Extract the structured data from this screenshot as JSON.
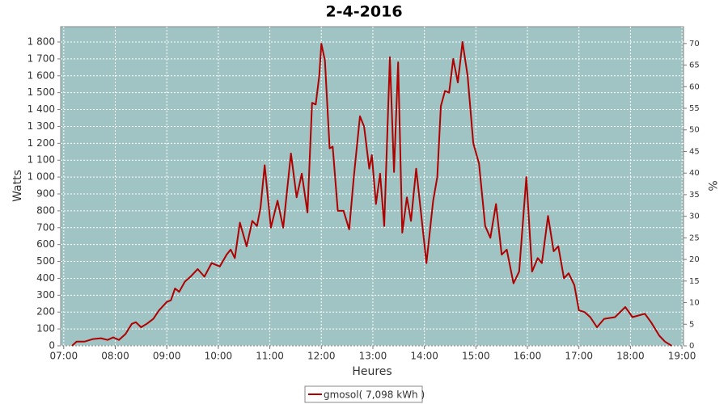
{
  "chart_data": {
    "type": "line",
    "title": "2-4-2016",
    "xlabel": "Heures",
    "ylabel": "Watts",
    "y2label": "%",
    "x": [
      7.16,
      7.25,
      7.4,
      7.57,
      7.72,
      7.85,
      7.96,
      8.07,
      8.2,
      8.32,
      8.4,
      8.5,
      8.61,
      8.74,
      8.85,
      9.0,
      9.08,
      9.16,
      9.24,
      9.35,
      9.46,
      9.6,
      9.73,
      9.87,
      10.03,
      10.16,
      10.24,
      10.32,
      10.42,
      10.55,
      10.66,
      10.75,
      10.82,
      10.9,
      11.02,
      11.15,
      11.26,
      11.41,
      11.52,
      11.62,
      11.73,
      11.82,
      11.89,
      11.96,
      12.0,
      12.07,
      12.16,
      12.22,
      12.32,
      12.43,
      12.54,
      12.63,
      12.75,
      12.83,
      12.93,
      12.98,
      13.06,
      13.14,
      13.22,
      13.33,
      13.41,
      13.49,
      13.57,
      13.66,
      13.74,
      13.84,
      13.93,
      14.04,
      14.17,
      14.25,
      14.32,
      14.4,
      14.48,
      14.56,
      14.65,
      14.74,
      14.84,
      14.95,
      15.06,
      15.18,
      15.28,
      15.39,
      15.5,
      15.6,
      15.73,
      15.84,
      15.98,
      16.09,
      16.2,
      16.28,
      16.4,
      16.51,
      16.6,
      16.71,
      16.8,
      16.91,
      17.0,
      17.11,
      17.22,
      17.35,
      17.49,
      17.7,
      17.9,
      18.04,
      18.28,
      18.4,
      18.56,
      18.67,
      18.8
    ],
    "series": [
      {
        "name": "gmosol( 7,098 kWh )",
        "color": "#b00000",
        "values": [
          0,
          25,
          25,
          40,
          45,
          35,
          50,
          35,
          70,
          130,
          140,
          110,
          130,
          160,
          210,
          260,
          270,
          340,
          320,
          380,
          410,
          455,
          410,
          490,
          470,
          540,
          570,
          520,
          730,
          590,
          740,
          710,
          820,
          1070,
          700,
          860,
          700,
          1140,
          880,
          1020,
          790,
          1440,
          1430,
          1600,
          1790,
          1690,
          1170,
          1180,
          800,
          800,
          690,
          1000,
          1360,
          1300,
          1050,
          1130,
          840,
          1020,
          710,
          1710,
          1030,
          1680,
          670,
          880,
          740,
          1050,
          800,
          490,
          860,
          1000,
          1420,
          1510,
          1500,
          1700,
          1560,
          1800,
          1600,
          1200,
          1080,
          710,
          640,
          840,
          540,
          570,
          370,
          440,
          1000,
          440,
          520,
          490,
          770,
          560,
          590,
          400,
          430,
          360,
          210,
          200,
          170,
          110,
          160,
          170,
          230,
          170,
          190,
          140,
          60,
          25,
          0
        ]
      }
    ],
    "xlim": [
      6.94,
      19.03
    ],
    "xticks": [
      {
        "value": 7,
        "label": "07:00"
      },
      {
        "value": 8,
        "label": "08:00"
      },
      {
        "value": 9,
        "label": "09:00"
      },
      {
        "value": 10,
        "label": "10:00"
      },
      {
        "value": 11,
        "label": "11:00"
      },
      {
        "value": 12,
        "label": "12:00"
      },
      {
        "value": 13,
        "label": "13:00"
      },
      {
        "value": 14,
        "label": "14:00"
      },
      {
        "value": 15,
        "label": "15:00"
      },
      {
        "value": 16,
        "label": "16:00"
      },
      {
        "value": 17,
        "label": "17:00"
      },
      {
        "value": 18,
        "label": "18:00"
      },
      {
        "value": 19,
        "label": "19:00"
      }
    ],
    "ylim": [
      0,
      1891
    ],
    "yticks": [
      0,
      100,
      200,
      300,
      400,
      500,
      600,
      700,
      800,
      900,
      {
        "value": 1000,
        "label": "1 000"
      },
      {
        "value": 1100,
        "label": "1 100"
      },
      {
        "value": 1200,
        "label": "1 200"
      },
      {
        "value": 1300,
        "label": "1 300"
      },
      {
        "value": 1400,
        "label": "1 400"
      },
      {
        "value": 1500,
        "label": "1 500"
      },
      {
        "value": 1600,
        "label": "1 600"
      },
      {
        "value": 1700,
        "label": "1 700"
      },
      {
        "value": 1800,
        "label": "1 800"
      }
    ],
    "y2lim": [
      0,
      73.9
    ],
    "y2ticks": [
      0,
      5,
      10,
      15,
      20,
      25,
      30,
      35,
      40,
      45,
      50,
      55,
      60,
      65,
      70
    ],
    "grid": true,
    "legend": "bottom",
    "plot_background": "#a0c3c3"
  }
}
